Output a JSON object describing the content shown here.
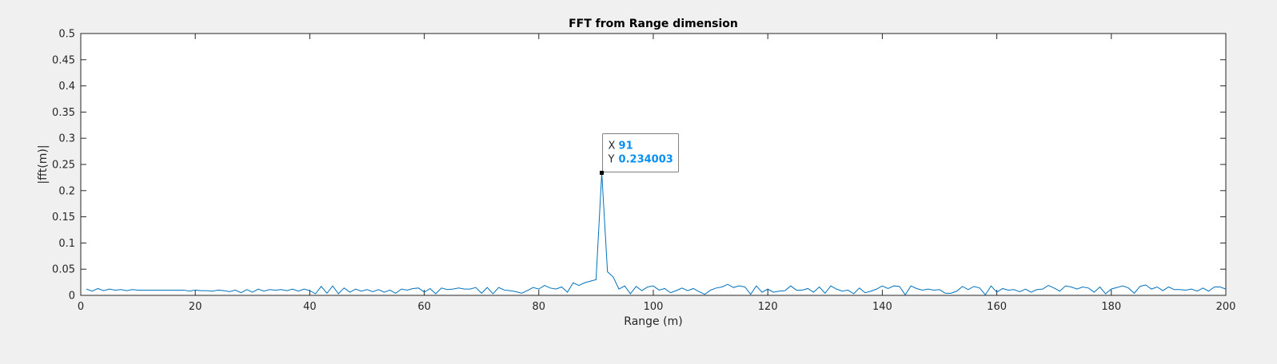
{
  "chart_data": {
    "type": "line",
    "title": "FFT from Range dimension",
    "xlabel": "Range (m)",
    "ylabel": "|fft(m)|",
    "xlim": [
      0,
      200
    ],
    "ylim": [
      0,
      0.5
    ],
    "xticks": [
      0,
      20,
      40,
      60,
      80,
      100,
      120,
      140,
      160,
      180,
      200
    ],
    "yticks": [
      0,
      0.05,
      0.1,
      0.15,
      0.2,
      0.25,
      0.3,
      0.35,
      0.4,
      0.45,
      0.5
    ],
    "grid": false,
    "line_color": "#0072bd",
    "x": [
      1,
      2,
      3,
      4,
      5,
      6,
      7,
      8,
      9,
      10,
      11,
      12,
      13,
      14,
      15,
      16,
      17,
      18,
      19,
      20,
      21,
      22,
      23,
      24,
      25,
      26,
      27,
      28,
      29,
      30,
      31,
      32,
      33,
      34,
      35,
      36,
      37,
      38,
      39,
      40,
      41,
      42,
      43,
      44,
      45,
      46,
      47,
      48,
      49,
      50,
      51,
      52,
      53,
      54,
      55,
      56,
      57,
      58,
      59,
      60,
      61,
      62,
      63,
      64,
      65,
      66,
      67,
      68,
      69,
      70,
      71,
      72,
      73,
      74,
      75,
      76,
      77,
      78,
      79,
      80,
      81,
      82,
      83,
      84,
      85,
      86,
      87,
      88,
      89,
      90,
      91,
      92,
      93,
      94,
      95,
      96,
      97,
      98,
      99,
      100,
      101,
      102,
      103,
      104,
      105,
      106,
      107,
      108,
      109,
      110,
      111,
      112,
      113,
      114,
      115,
      116,
      117,
      118,
      119,
      120,
      121,
      122,
      123,
      124,
      125,
      126,
      127,
      128,
      129,
      130,
      131,
      132,
      133,
      134,
      135,
      136,
      137,
      138,
      139,
      140,
      141,
      142,
      143,
      144,
      145,
      146,
      147,
      148,
      149,
      150,
      151,
      152,
      153,
      154,
      155,
      156,
      157,
      158,
      159,
      160,
      161,
      162,
      163,
      164,
      165,
      166,
      167,
      168,
      169,
      170,
      171,
      172,
      173,
      174,
      175,
      176,
      177,
      178,
      179,
      180,
      181,
      182,
      183,
      184,
      185,
      186,
      187,
      188,
      189,
      190,
      191,
      192,
      193,
      194,
      195,
      196,
      197,
      198,
      199,
      200
    ],
    "y": [
      0.012,
      0.008,
      0.013,
      0.009,
      0.012,
      0.01,
      0.011,
      0.009,
      0.011,
      0.01,
      0.01,
      0.01,
      0.01,
      0.01,
      0.01,
      0.01,
      0.01,
      0.01,
      0.008,
      0.01,
      0.009,
      0.009,
      0.008,
      0.01,
      0.009,
      0.007,
      0.01,
      0.005,
      0.011,
      0.006,
      0.012,
      0.008,
      0.011,
      0.01,
      0.011,
      0.009,
      0.012,
      0.008,
      0.012,
      0.009,
      0.003,
      0.017,
      0.004,
      0.018,
      0.003,
      0.014,
      0.006,
      0.012,
      0.008,
      0.011,
      0.007,
      0.011,
      0.006,
      0.01,
      0.004,
      0.012,
      0.01,
      0.013,
      0.014,
      0.006,
      0.013,
      0.003,
      0.014,
      0.011,
      0.012,
      0.014,
      0.012,
      0.012,
      0.015,
      0.004,
      0.015,
      0.003,
      0.015,
      0.01,
      0.009,
      0.007,
      0.004,
      0.009,
      0.015,
      0.012,
      0.019,
      0.014,
      0.012,
      0.016,
      0.006,
      0.024,
      0.019,
      0.024,
      0.027,
      0.03,
      0.234,
      0.045,
      0.035,
      0.012,
      0.018,
      0.003,
      0.017,
      0.009,
      0.016,
      0.018,
      0.01,
      0.013,
      0.005,
      0.009,
      0.014,
      0.009,
      0.013,
      0.007,
      0.002,
      0.01,
      0.014,
      0.016,
      0.021,
      0.015,
      0.018,
      0.016,
      0.002,
      0.018,
      0.006,
      0.012,
      0.006,
      0.008,
      0.009,
      0.018,
      0.01,
      0.01,
      0.013,
      0.006,
      0.016,
      0.004,
      0.018,
      0.012,
      0.008,
      0.01,
      0.003,
      0.014,
      0.005,
      0.008,
      0.012,
      0.018,
      0.013,
      0.018,
      0.017,
      0.001,
      0.018,
      0.013,
      0.01,
      0.012,
      0.01,
      0.011,
      0.004,
      0.004,
      0.008,
      0.017,
      0.011,
      0.017,
      0.014,
      0.001,
      0.018,
      0.006,
      0.013,
      0.01,
      0.011,
      0.007,
      0.012,
      0.006,
      0.011,
      0.012,
      0.019,
      0.014,
      0.008,
      0.018,
      0.016,
      0.012,
      0.016,
      0.014,
      0.006,
      0.016,
      0.003,
      0.012,
      0.015,
      0.018,
      0.014,
      0.004,
      0.017,
      0.02,
      0.012,
      0.016,
      0.009,
      0.016,
      0.011,
      0.011,
      0.01,
      0.012,
      0.008,
      0.014,
      0.008,
      0.016,
      0.016,
      0.012
    ],
    "datatip": {
      "x_key": "X",
      "x_value": "91",
      "y_key": "Y",
      "y_value": "0.234003"
    }
  }
}
